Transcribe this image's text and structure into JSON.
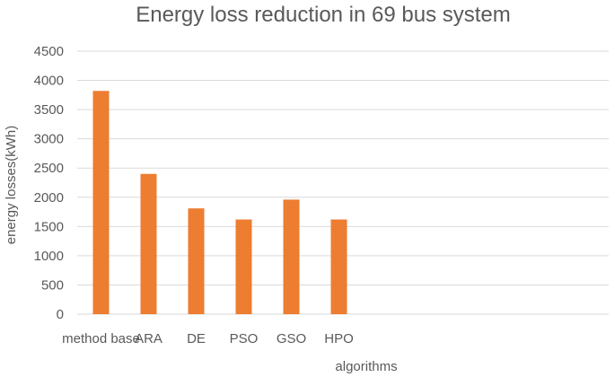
{
  "chart_data": {
    "type": "bar",
    "title": "Energy loss reduction in 69 bus system",
    "xlabel": "algorithms",
    "ylabel": "energy losses(kWh)",
    "categories": [
      "method base",
      "ARA",
      "DE",
      "PSO",
      "GSO",
      "HPO"
    ],
    "values": [
      3820,
      2400,
      1810,
      1620,
      1960,
      1620
    ],
    "ylim": [
      0,
      4500
    ],
    "yticks": [
      0,
      500,
      1000,
      1500,
      2000,
      2500,
      3000,
      3500,
      4000,
      4500
    ],
    "grid": true,
    "legend": "none",
    "bar_color": "#ed7d31",
    "grid_color": "#d9d9d9"
  }
}
